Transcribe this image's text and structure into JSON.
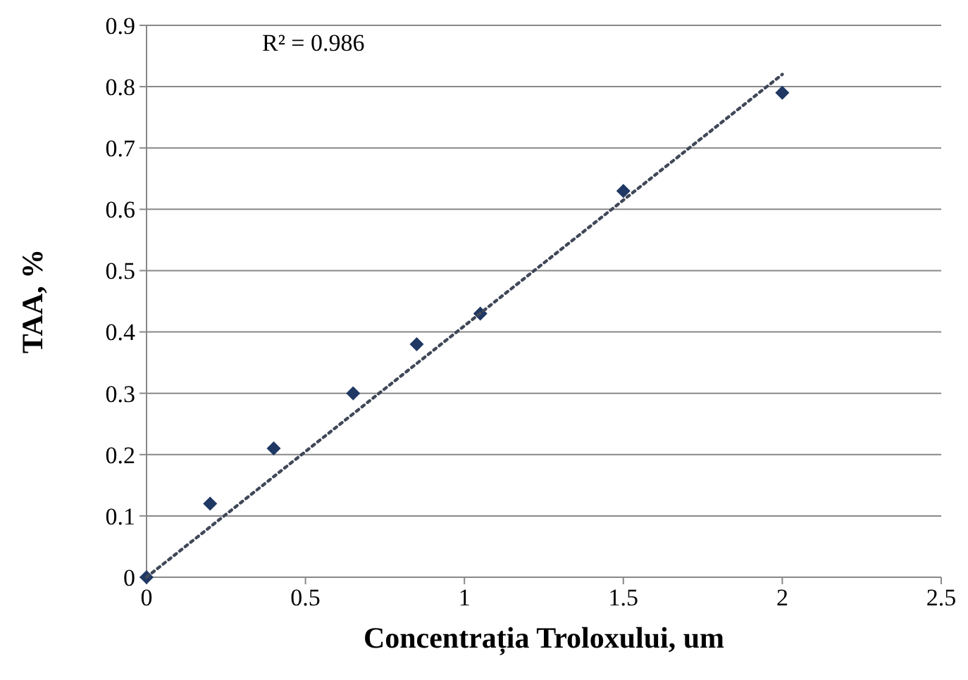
{
  "chart_data": {
    "type": "scatter",
    "xlabel": "Concentrația Troloxului, um",
    "ylabel": "TAA, %",
    "xlim": [
      0,
      2.5
    ],
    "xticks": [
      0,
      0.5,
      1,
      1.5,
      2,
      2.5
    ],
    "ylim": [
      0,
      0.9
    ],
    "yticks": [
      0,
      0.1,
      0.2,
      0.3,
      0.4,
      0.5,
      0.6,
      0.7,
      0.8,
      0.9
    ],
    "grid": "y",
    "annotations": [
      "R² = 0.986"
    ],
    "series": [
      {
        "marker": "diamond",
        "color": "#1f3864",
        "x": [
          0,
          0.2,
          0.4,
          0.65,
          0.85,
          1.05,
          1.5,
          2.0
        ],
        "values": [
          0,
          0.12,
          0.21,
          0.3,
          0.38,
          0.43,
          0.63,
          0.79
        ]
      },
      {
        "type": "line",
        "color": "#404858",
        "line_style": "dotted",
        "x": [
          0,
          2.0
        ],
        "values": [
          0,
          0.82
        ]
      }
    ]
  }
}
